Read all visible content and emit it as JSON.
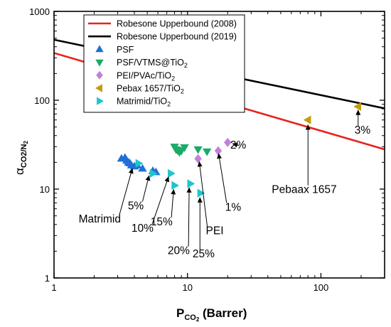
{
  "chart_data": {
    "type": "scatter",
    "xscale": "log",
    "yscale": "log",
    "xlim": [
      1,
      300
    ],
    "ylim": [
      1,
      1000
    ],
    "x_ticks": [
      "1",
      "10",
      "100"
    ],
    "y_ticks": [
      "1",
      "10",
      "100",
      "1000"
    ],
    "xlabel": {
      "main": "P",
      "sub": "CO",
      "sub2": "2",
      "tail": " (Barrer)"
    },
    "ylabel": {
      "main": "α",
      "sub": "CO2/N",
      "sub2": "2"
    },
    "lines": [
      {
        "name": "Robesone Upperbound (2008)",
        "color": "#e8231e",
        "points": [
          [
            1,
            340
          ],
          [
            300,
            28
          ]
        ]
      },
      {
        "name": "Robesone Upperbound (2019)",
        "color": "#000000",
        "points": [
          [
            1,
            480
          ],
          [
            300,
            81
          ]
        ]
      }
    ],
    "series": [
      {
        "name": "PSF",
        "marker": "triangle-up",
        "color": "#1f6fd6",
        "points": [
          [
            3.2,
            22
          ],
          [
            3.4,
            22.5
          ],
          [
            3.5,
            21
          ],
          [
            3.6,
            20
          ],
          [
            3.7,
            19.5
          ],
          [
            3.8,
            18.5
          ],
          [
            4.0,
            18
          ],
          [
            4.2,
            18.5
          ],
          [
            4.6,
            17
          ],
          [
            5.5,
            16
          ],
          [
            5.8,
            15.5
          ]
        ]
      },
      {
        "name": "PSF/VTMS@TiO",
        "name_sub": "2",
        "marker": "triangle-down",
        "color": "#1aaa6a",
        "points": [
          [
            8.0,
            30
          ],
          [
            8.2,
            28
          ],
          [
            8.4,
            27.5
          ],
          [
            8.7,
            26
          ],
          [
            9.0,
            27
          ],
          [
            9.5,
            29.5
          ],
          [
            12.0,
            28
          ],
          [
            14.0,
            26.5
          ]
        ]
      },
      {
        "name": "PEI/PVAc/TiO",
        "name_sub": "2",
        "marker": "diamond",
        "color": "#c47fd8",
        "points": [
          [
            12.0,
            22
          ],
          [
            17.0,
            27
          ],
          [
            20.0,
            33.5
          ]
        ]
      },
      {
        "name": "Pebax 1657/TiO",
        "name_sub": "2",
        "marker": "triangle-left",
        "color": "#c69a0c",
        "points": [
          [
            80.0,
            60
          ],
          [
            190.0,
            85
          ]
        ]
      },
      {
        "name": "Matrimid/TiO",
        "name_sub": "2",
        "marker": "triangle-right",
        "color": "#1dc5cc",
        "points": [
          [
            4.3,
            19.5
          ],
          [
            5.5,
            15
          ],
          [
            7.5,
            15
          ],
          [
            8.0,
            11
          ],
          [
            10.5,
            11.5
          ],
          [
            12.5,
            9
          ]
        ]
      }
    ],
    "annotations": [
      {
        "text": "2%",
        "label": [
          24,
          28.5
        ],
        "arrow_to": [
          21,
          33
        ]
      },
      {
        "text": "1%",
        "label": [
          22,
          5.7
        ],
        "arrow_to": [
          17,
          26.5
        ]
      },
      {
        "text": "PEI",
        "label": [
          16,
          3.1
        ],
        "arrow_to": [
          12.2,
          21.5
        ]
      },
      {
        "text": "Pebaax 1657",
        "label": [
          75,
          9.0
        ],
        "arrow_to": [
          80,
          56
        ]
      },
      {
        "text": "3%",
        "label": [
          205,
          42
        ],
        "arrow_to": [
          190,
          82
        ]
      },
      {
        "text": "Matrimid",
        "label": [
          2.2,
          4.2
        ],
        "arrow_to": [
          3.9,
          18
        ]
      },
      {
        "text": "5%",
        "label": [
          4.1,
          5.9
        ],
        "arrow_to": [
          5.2,
          15
        ]
      },
      {
        "text": "10%",
        "label": [
          4.6,
          3.3
        ],
        "arrow_to": [
          7.3,
          14.5
        ]
      },
      {
        "text": "15%",
        "label": [
          6.4,
          3.9
        ],
        "arrow_to": [
          7.9,
          10.5
        ]
      },
      {
        "text": "20%",
        "label": [
          8.6,
          1.85
        ],
        "arrow_to": [
          10.3,
          11
        ]
      },
      {
        "text": "25%",
        "label": [
          13.2,
          1.7
        ],
        "arrow_to": [
          12.4,
          8.5
        ]
      }
    ]
  }
}
